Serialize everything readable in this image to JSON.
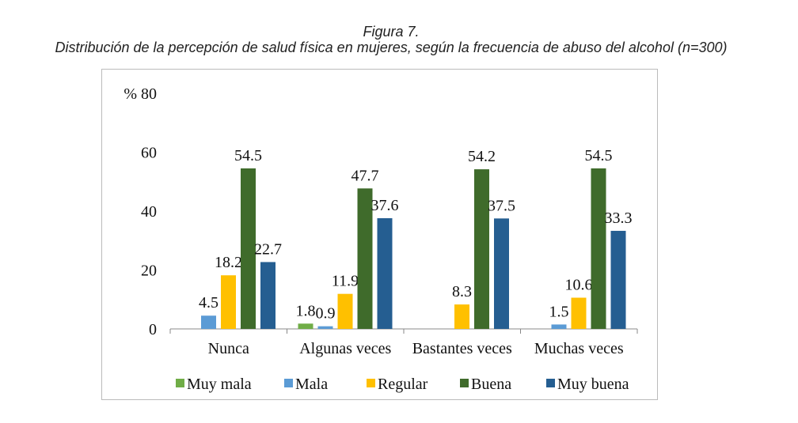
{
  "caption": {
    "figure": "Figura 7.",
    "title": "Distribución de la percepción de salud física en mujeres, según la frecuencia de abuso del alcohol (n=300)"
  },
  "chart_data": {
    "type": "bar",
    "ylabel": "%",
    "ylim": [
      0,
      80
    ],
    "yticks": [
      0,
      20,
      40,
      60,
      80
    ],
    "categories": [
      "Nunca",
      "Algunas veces",
      "Bastantes veces",
      "Muchas veces"
    ],
    "series": [
      {
        "name": "Muy mala",
        "color": "#70ad47",
        "values": [
          null,
          1.8,
          null,
          null
        ]
      },
      {
        "name": "Mala",
        "color": "#5b9bd5",
        "values": [
          4.5,
          0.9,
          null,
          1.5
        ]
      },
      {
        "name": "Regular",
        "color": "#ffc000",
        "values": [
          18.2,
          11.9,
          8.3,
          10.6
        ]
      },
      {
        "name": "Buena",
        "color": "#3f6b2b",
        "values": [
          54.5,
          47.7,
          54.2,
          54.5
        ]
      },
      {
        "name": "Muy buena",
        "color": "#255e91",
        "values": [
          22.7,
          37.6,
          37.5,
          33.3
        ]
      }
    ],
    "legend": "bottom",
    "grid": false
  }
}
